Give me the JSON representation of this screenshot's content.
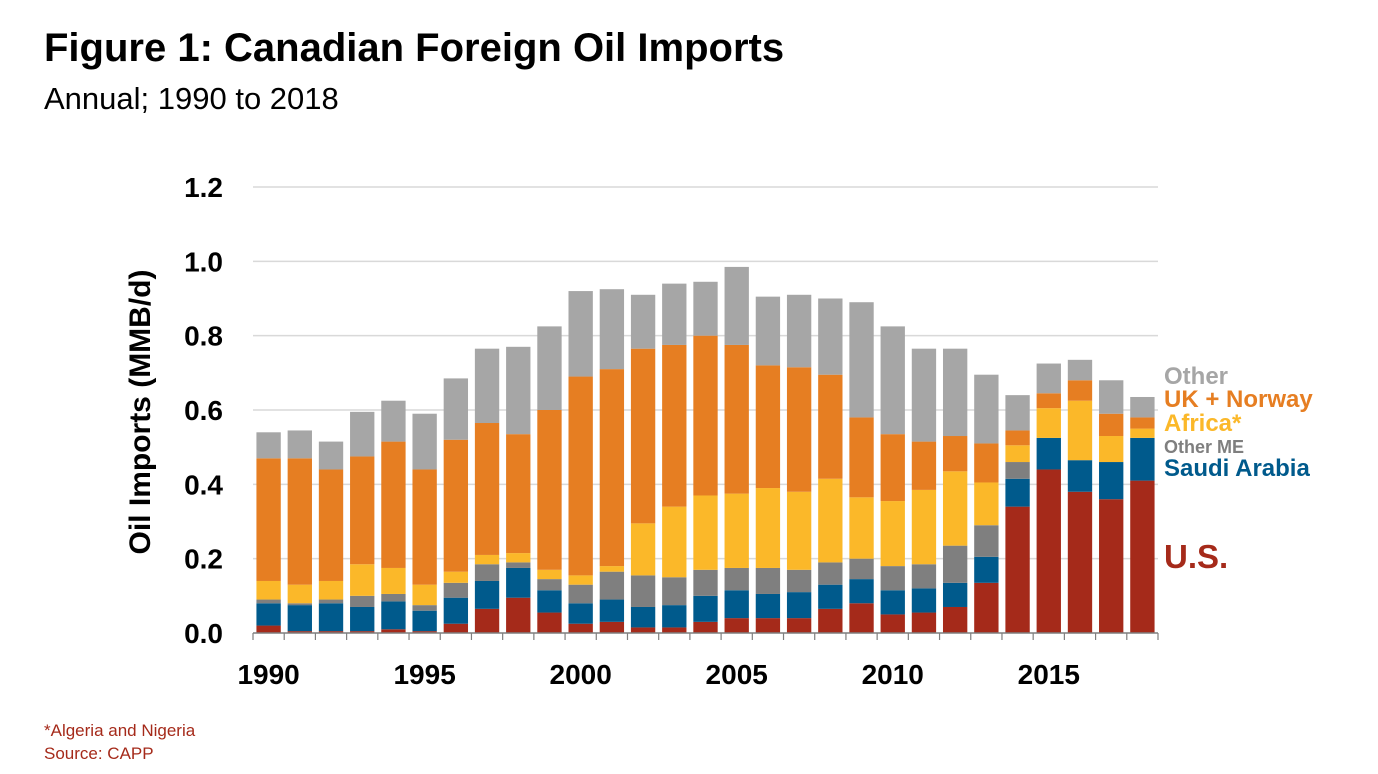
{
  "header": {
    "title": "Figure 1: Canadian Foreign Oil Imports",
    "subtitle": "Annual; 1990 to 2018"
  },
  "footer": {
    "note": "*Algeria and Nigeria",
    "source": "Source: CAPP"
  },
  "chart_data": {
    "type": "bar",
    "stacked": true,
    "title": "Figure 1: Canadian Foreign Oil Imports",
    "subtitle": "Annual; 1990 to 2018",
    "ylabel": "Oil Imports (MMB/d)",
    "xlabel": "",
    "ylim": [
      0,
      1.2
    ],
    "yticks": [
      "0.0",
      "0.2",
      "0.4",
      "0.6",
      "0.8",
      "1.0",
      "1.2"
    ],
    "xtick_labels": [
      "1990",
      "1995",
      "2000",
      "2005",
      "2010",
      "2015"
    ],
    "grid": true,
    "legend_position": "right, labels aligned with the last bar's segments",
    "categories": [
      1990,
      1991,
      1992,
      1993,
      1994,
      1995,
      1996,
      1997,
      1998,
      1999,
      2000,
      2001,
      2002,
      2003,
      2004,
      2005,
      2006,
      2007,
      2008,
      2009,
      2010,
      2011,
      2012,
      2013,
      2014,
      2015,
      2016,
      2017,
      2018
    ],
    "series": [
      {
        "name": "U.S.",
        "color": "#a52a1a",
        "values": [
          0.02,
          0.005,
          0.005,
          0.005,
          0.01,
          0.005,
          0.025,
          0.065,
          0.095,
          0.055,
          0.025,
          0.03,
          0.015,
          0.015,
          0.03,
          0.04,
          0.04,
          0.04,
          0.065,
          0.08,
          0.05,
          0.055,
          0.07,
          0.135,
          0.34,
          0.44,
          0.38,
          0.36,
          0.41
        ]
      },
      {
        "name": "Saudi Arabia",
        "color": "#005a8c",
        "values": [
          0.06,
          0.07,
          0.075,
          0.065,
          0.075,
          0.055,
          0.07,
          0.075,
          0.08,
          0.06,
          0.055,
          0.06,
          0.055,
          0.06,
          0.07,
          0.075,
          0.065,
          0.07,
          0.065,
          0.065,
          0.065,
          0.065,
          0.065,
          0.07,
          0.075,
          0.085,
          0.085,
          0.1,
          0.115
        ]
      },
      {
        "name": "Other ME",
        "color": "#7f7f7f",
        "values": [
          0.01,
          0.005,
          0.01,
          0.03,
          0.02,
          0.015,
          0.04,
          0.045,
          0.015,
          0.03,
          0.05,
          0.075,
          0.085,
          0.075,
          0.07,
          0.06,
          0.07,
          0.06,
          0.06,
          0.055,
          0.065,
          0.065,
          0.1,
          0.085,
          0.045,
          0,
          0,
          0,
          0
        ]
      },
      {
        "name": "Africa*",
        "color": "#fbb829",
        "values": [
          0.05,
          0.05,
          0.05,
          0.085,
          0.07,
          0.055,
          0.03,
          0.025,
          0.025,
          0.025,
          0.025,
          0.015,
          0.14,
          0.19,
          0.2,
          0.2,
          0.215,
          0.21,
          0.225,
          0.165,
          0.175,
          0.2,
          0.2,
          0.115,
          0.045,
          0.08,
          0.16,
          0.07,
          0.025
        ]
      },
      {
        "name": "UK + Norway",
        "color": "#e67e22",
        "values": [
          0.33,
          0.34,
          0.3,
          0.29,
          0.34,
          0.31,
          0.355,
          0.355,
          0.32,
          0.43,
          0.535,
          0.53,
          0.47,
          0.435,
          0.43,
          0.4,
          0.33,
          0.335,
          0.28,
          0.215,
          0.18,
          0.13,
          0.095,
          0.105,
          0.04,
          0.04,
          0.055,
          0.06,
          0.03
        ]
      },
      {
        "name": "Other",
        "color": "#a6a6a6",
        "values": [
          0.07,
          0.075,
          0.075,
          0.12,
          0.11,
          0.15,
          0.165,
          0.2,
          0.235,
          0.225,
          0.23,
          0.215,
          0.145,
          0.165,
          0.145,
          0.21,
          0.185,
          0.195,
          0.205,
          0.31,
          0.29,
          0.25,
          0.235,
          0.185,
          0.095,
          0.08,
          0.055,
          0.09,
          0.055
        ]
      }
    ],
    "legend_label_colors": {
      "Other": "#a6a6a6",
      "UK + Norway": "#e67e22",
      "Africa*": "#fbb829",
      "Other ME": "#7f7f7f",
      "Saudi Arabia": "#005a8c",
      "U.S.": "#a52a1a"
    }
  }
}
